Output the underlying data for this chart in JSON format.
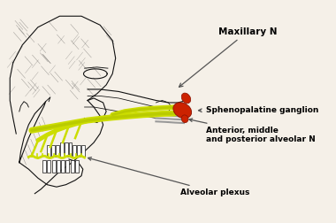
{
  "bg_color": "#f5f0e8",
  "label_maxillary": "Maxillary N",
  "label_ganglion": "Sphenopalatine ganglion",
  "label_alveolar": "Anterior, middle\nand posterior alveolar N",
  "label_plexus": "Alveolar plexus",
  "nerve_color": "#ccdd00",
  "nerve_dark": "#aabb00",
  "ganglion_color": "#cc2200",
  "ganglion_dark": "#881100",
  "arrow_color": "#555555",
  "line_color": "#111111",
  "label_fontsize": 6.5,
  "label_maxillary_fontsize": 7.5
}
